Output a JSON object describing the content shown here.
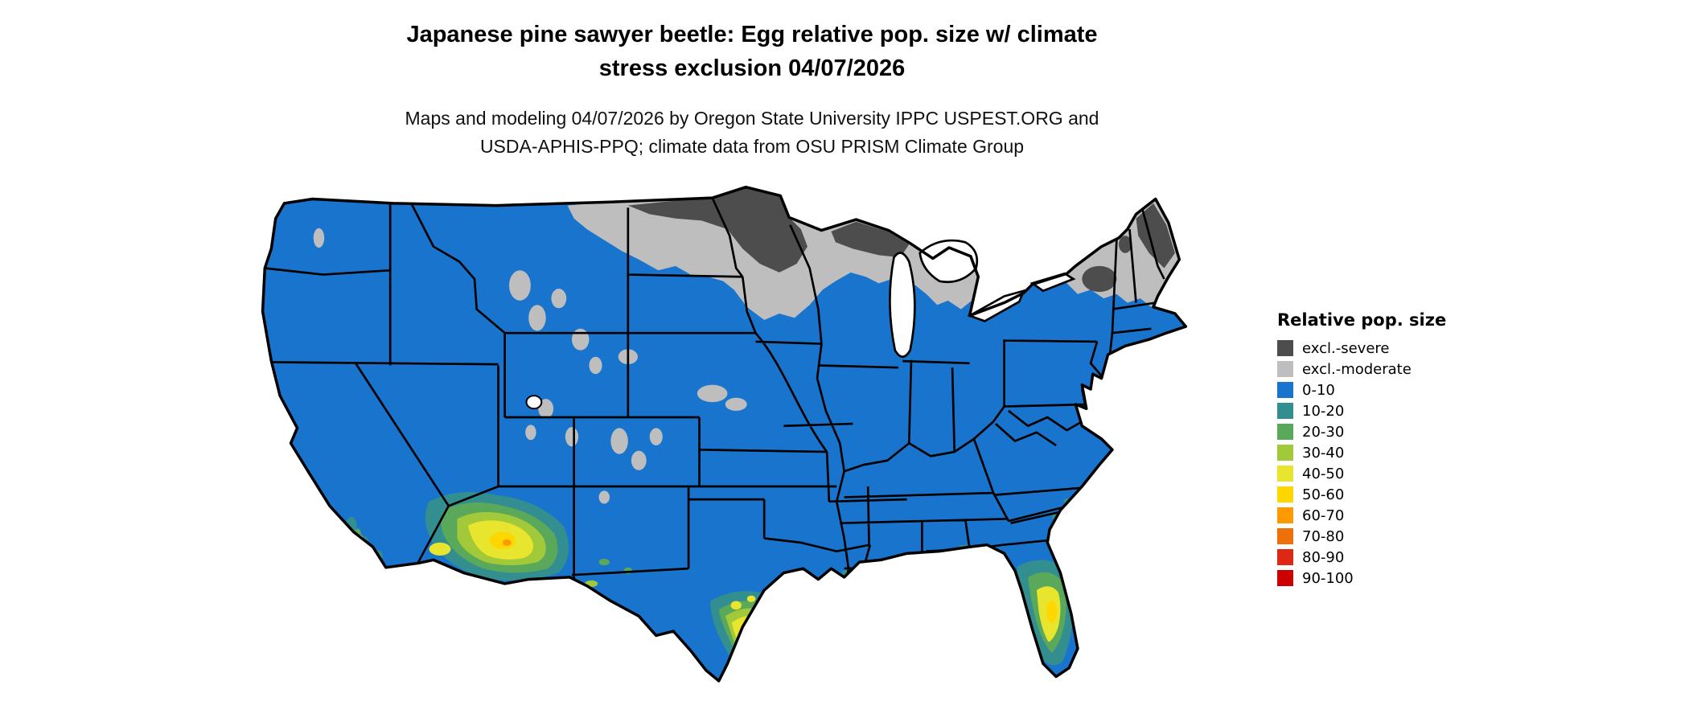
{
  "title": {
    "line1": "Japanese pine sawyer beetle: Egg relative pop. size w/ climate",
    "line2": "stress exclusion 04/07/2026"
  },
  "subtitle": {
    "line1": "Maps and modeling 04/07/2026 by Oregon State University IPPC USPEST.ORG and",
    "line2": "USDA-APHIS-PPQ; climate data from OSU PRISM Climate Group"
  },
  "legend": {
    "title": "Relative pop. size",
    "items": [
      {
        "label": "excl.-severe",
        "color": "#4d4d4d"
      },
      {
        "label": "excl.-moderate",
        "color": "#bebebe"
      },
      {
        "label": "0-10",
        "color": "#1874cd"
      },
      {
        "label": "10-20",
        "color": "#338f8f"
      },
      {
        "label": "20-30",
        "color": "#5aa85a"
      },
      {
        "label": "30-40",
        "color": "#a2c93a"
      },
      {
        "label": "40-50",
        "color": "#e8e52e"
      },
      {
        "label": "50-60",
        "color": "#ffd700"
      },
      {
        "label": "60-70",
        "color": "#ff9900"
      },
      {
        "label": "70-80",
        "color": "#ee7008"
      },
      {
        "label": "80-90",
        "color": "#dc2814"
      },
      {
        "label": "90-100",
        "color": "#cc0000"
      }
    ]
  },
  "map": {
    "aria_label": "Continental United States map shaded by relative population size class with climate stress exclusion areas"
  }
}
